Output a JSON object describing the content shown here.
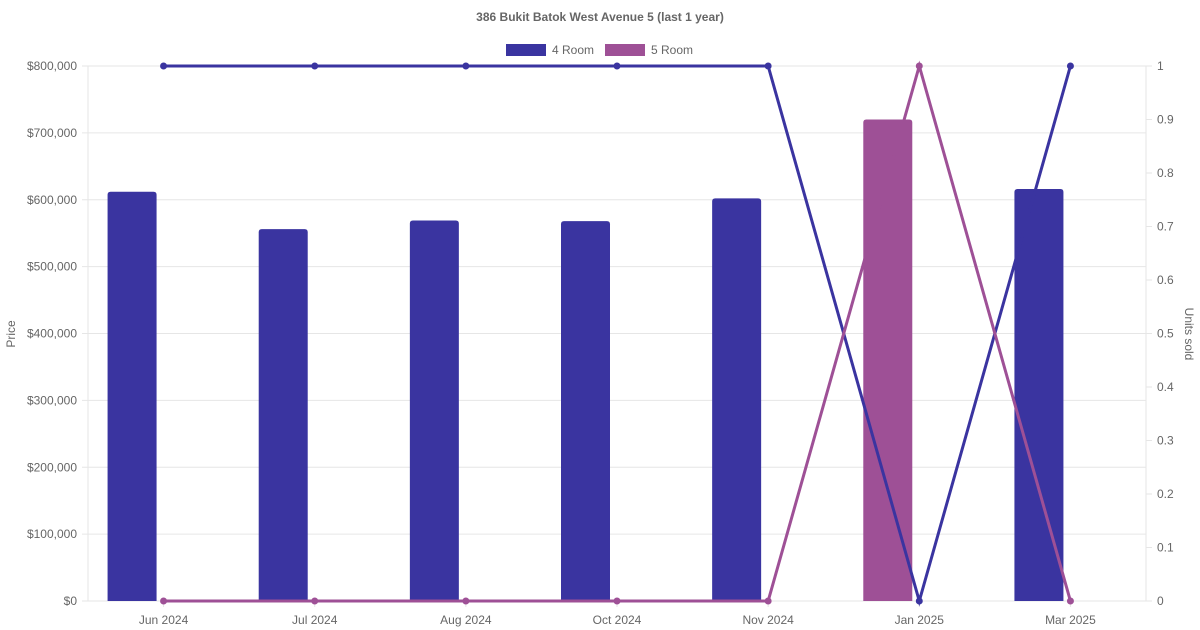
{
  "chart_data": {
    "type": "bar",
    "title": "386 Bukit Batok West Avenue 5 (last 1 year)",
    "categories": [
      "Jun 2024",
      "Jul 2024",
      "Aug 2024",
      "Oct 2024",
      "Nov 2024",
      "Jan 2025",
      "Mar 2025"
    ],
    "ylabel_left": "Price",
    "ylabel_right": "Units sold",
    "ylim_left": [
      0,
      800000
    ],
    "ylim_right": [
      0,
      1
    ],
    "left_ticks": [
      "$0",
      "$100,000",
      "$200,000",
      "$300,000",
      "$400,000",
      "$500,000",
      "$600,000",
      "$700,000",
      "$800,000"
    ],
    "right_ticks": [
      "0",
      "0.1",
      "0.2",
      "0.3",
      "0.4",
      "0.5",
      "0.6",
      "0.7",
      "0.8",
      "0.9",
      "1"
    ],
    "grid": true,
    "legend_position": "top",
    "series": [
      {
        "name": "4 Room",
        "color": "#3a34a0",
        "bar_values": [
          612000,
          556000,
          569000,
          568000,
          602000,
          null,
          616000
        ],
        "line_values": [
          1,
          1,
          1,
          1,
          1,
          0,
          1
        ]
      },
      {
        "name": "5 Room",
        "color": "#9e5096",
        "bar_values": [
          null,
          null,
          null,
          null,
          null,
          720000,
          null
        ],
        "line_values": [
          0,
          0,
          0,
          0,
          0,
          1,
          0
        ]
      }
    ]
  }
}
